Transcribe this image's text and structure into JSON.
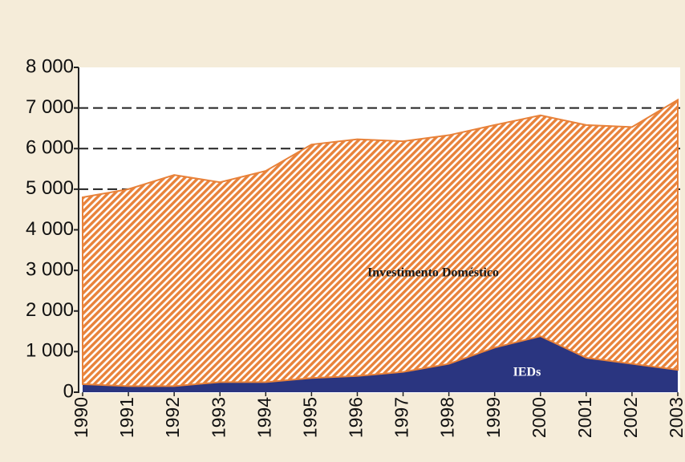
{
  "chart_data": {
    "type": "stacked_area",
    "x": [
      1990,
      1991,
      1992,
      1993,
      1994,
      1995,
      1996,
      1997,
      1998,
      1999,
      2000,
      2001,
      2002,
      2003
    ],
    "xlim": [
      1990,
      2003
    ],
    "xticks": [
      1990,
      1991,
      1992,
      1993,
      1994,
      1995,
      1996,
      1997,
      1998,
      1999,
      2000,
      2001,
      2002,
      2003
    ],
    "ylim": [
      0,
      8000
    ],
    "yticks": [
      0,
      {
        "value": 1000,
        "label": "1 000"
      },
      {
        "value": 2000,
        "label": "2 000"
      },
      {
        "value": 3000,
        "label": "3 000"
      },
      {
        "value": 4000,
        "label": "4 000"
      },
      {
        "value": 5000,
        "label": "5 000"
      },
      {
        "value": 6000,
        "label": "6 000"
      },
      {
        "value": 7000,
        "label": "7 000"
      },
      {
        "value": 8000,
        "label": "8 000"
      }
    ],
    "grid_values": [
      5000,
      6000,
      7000
    ],
    "series": [
      {
        "name": "IEDs",
        "color": "#2a3580",
        "values": [
          200,
          150,
          150,
          250,
          250,
          350,
          400,
          500,
          700,
          1100,
          1380,
          850,
          700,
          550
        ]
      },
      {
        "name": "Investimento Doméstico",
        "color": "#e8823a",
        "values": [
          4600,
          4850,
          5200,
          4920,
          5200,
          5750,
          5830,
          5680,
          5630,
          5480,
          5440,
          5730,
          5830,
          6650
        ]
      }
    ]
  }
}
